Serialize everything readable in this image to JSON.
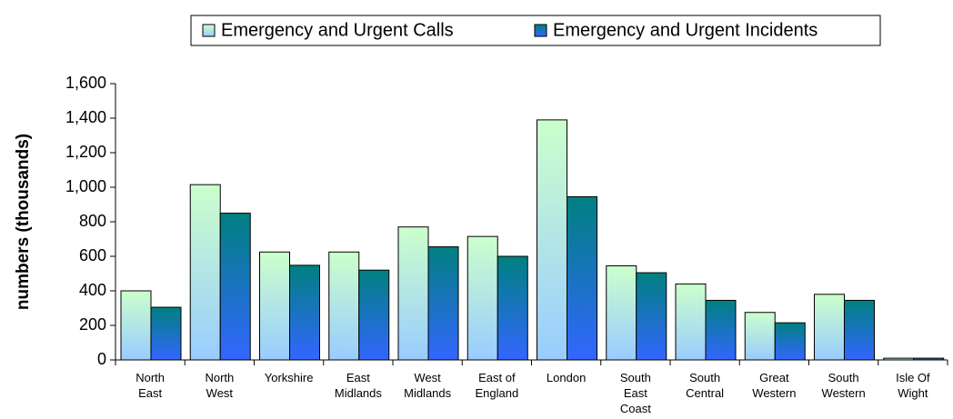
{
  "chart_data": {
    "type": "bar",
    "y_label": "numbers (thousands)",
    "categories": [
      "North\nEast",
      "North\nWest",
      "Yorkshire",
      "East\nMidlands",
      "West\nMidlands",
      "East of\nEngland",
      "London",
      "South\nEast\nCoast",
      "South\nCentral",
      "Great\nWestern",
      "South\nWestern",
      "Isle Of\nWight"
    ],
    "series": [
      {
        "name": "Emergency and Urgent Calls",
        "color": "#ccffcc",
        "values": [
          400,
          1015,
          625,
          625,
          770,
          715,
          1390,
          545,
          440,
          275,
          380,
          10
        ]
      },
      {
        "name": "Emergency and Urgent Incidents",
        "color": "#008080",
        "values": [
          305,
          850,
          548,
          520,
          655,
          600,
          945,
          505,
          345,
          215,
          345,
          10
        ]
      }
    ],
    "ylim": [
      0,
      1600
    ],
    "yticks": [
      0,
      200,
      400,
      600,
      800,
      {
        "value": 1000,
        "label": "1,000"
      },
      {
        "value": 1200,
        "label": "1,200"
      },
      {
        "value": 1400,
        "label": "1,400"
      },
      {
        "value": 1600,
        "label": "1,600"
      }
    ],
    "legend": "top"
  }
}
